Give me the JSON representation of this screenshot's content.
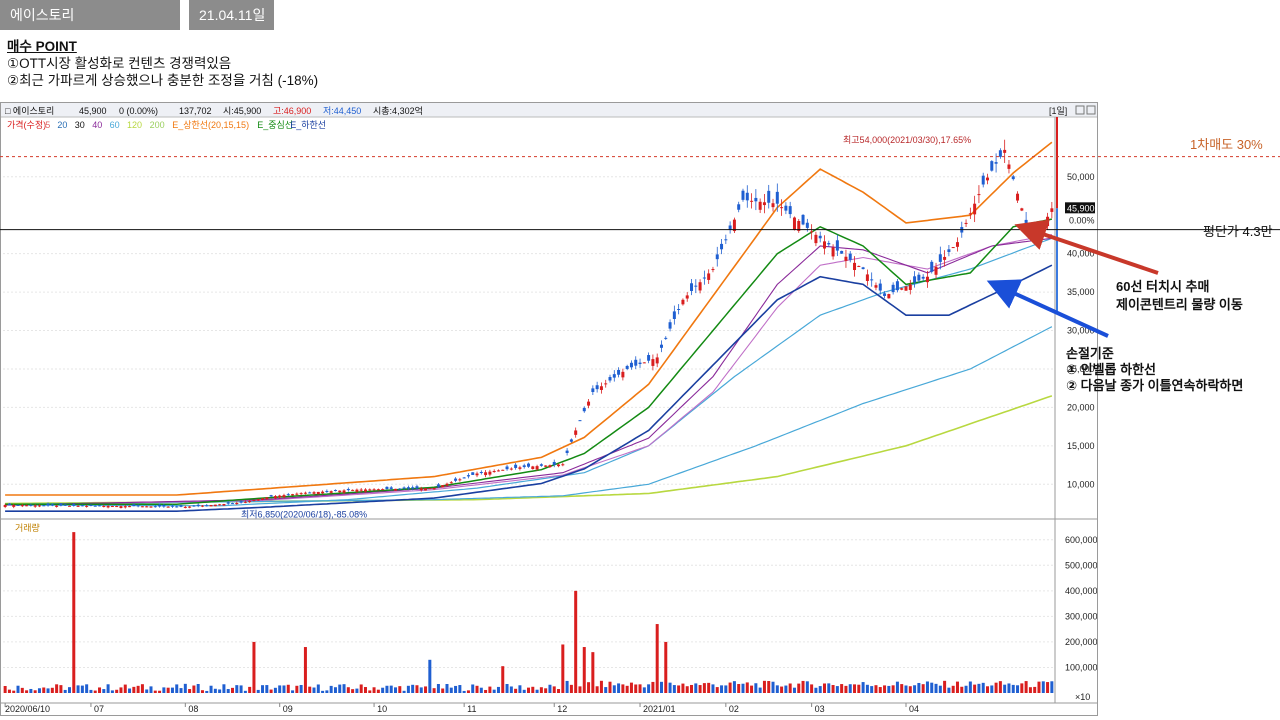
{
  "header": {
    "stock_name": "에이스토리",
    "date": "21.04.11일"
  },
  "points": {
    "title": "매수 POINT",
    "items": [
      "①OTT시장 활성화로 컨텐츠 경쟁력있음",
      "②최근 가파르게 상승했으나 충분한 조정을 거침 (-18%)"
    ]
  },
  "annotations": {
    "sell_target": "1차매도 30%",
    "avg_price": "평단가 4.3만",
    "buy_more_1": "60선 터치시 추매",
    "buy_more_2": "제이콘텐트리 물량 이동",
    "stop_title": "손절기준",
    "stop_1": "① 인벨롭 하한선",
    "stop_2": "② 다음날 종가 이틀연속하락하면"
  },
  "colors": {
    "up": "#d91e1e",
    "down": "#1f5fd1",
    "ma5": "#e06666",
    "ma20": "#2a6fb5",
    "ma60": "#48a8d8",
    "ma120": "#b8d840",
    "env_upper": "#f07810",
    "env_mid": "#138a13",
    "env_lower": "#1a3fa0",
    "ma30": "#8a2a9a",
    "ma40": "#c070c8",
    "annotation_red": "#c8382a",
    "annotation_blue": "#1a4fd8",
    "sell_text": "#c8642a"
  },
  "chart_data": {
    "type": "candlestick",
    "info_bar": {
      "name": "에이스토리",
      "price": "45,900",
      "change": "0",
      "change_pct": "(0.00%)",
      "volume": "137,702",
      "open": "시:45,900",
      "high": "고:46,900",
      "low": "저:44,450",
      "market_cap": "시총:4,302억",
      "period": "1일"
    },
    "legend": [
      "가격(수정)",
      "5",
      "20",
      "30",
      "40",
      "60",
      "120",
      "200",
      "E_상한선(20,15,15)",
      "E_중심선",
      "E_하한선"
    ],
    "volume_label": "거래량",
    "volume_unit": "×10",
    "price_axis": {
      "ticks": [
        10000,
        15000,
        20000,
        25000,
        30000,
        35000,
        40000,
        50000
      ],
      "labels": [
        "10,000",
        "15,000",
        "20,000",
        "25,000",
        "30,000",
        "35,000",
        "40,000",
        "50,000"
      ],
      "ylim": [
        6000,
        57000
      ]
    },
    "volume_axis": {
      "ticks": [
        100000,
        200000,
        300000,
        400000,
        500000,
        600000
      ],
      "labels": [
        "100,000",
        "200,000",
        "300,000",
        "400,000",
        "500,000",
        "600,000"
      ],
      "ylim": [
        0,
        650000
      ]
    },
    "x_axis_labels": [
      "2020/06/10",
      "07",
      "08",
      "09",
      "10",
      "11",
      "12",
      "2021/01",
      "02",
      "03",
      "04"
    ],
    "current_price": {
      "value": 45900,
      "label": "45,900",
      "pct_label": "0.00%"
    },
    "high_annotation": {
      "value": 54000,
      "label": "최고54,000(2021/03/30),17.65%"
    },
    "low_annotation": {
      "value": 6850,
      "label": "최저6,850(2020/06/18),-85.08%"
    },
    "sell_target_price": 52500,
    "avg_price_level": 43000,
    "price_anchors": [
      [
        0,
        7300
      ],
      [
        15,
        7200
      ],
      [
        30,
        7150
      ],
      [
        42,
        7050
      ],
      [
        55,
        7600
      ],
      [
        62,
        8400
      ],
      [
        70,
        8900
      ],
      [
        82,
        9300
      ],
      [
        100,
        9500
      ],
      [
        110,
        11400
      ],
      [
        120,
        12200
      ],
      [
        130,
        12600
      ],
      [
        133,
        17000
      ],
      [
        137,
        22000
      ],
      [
        145,
        25000
      ],
      [
        152,
        26500
      ],
      [
        158,
        34000
      ],
      [
        165,
        38000
      ],
      [
        172,
        47000
      ],
      [
        180,
        46500
      ],
      [
        190,
        42000
      ],
      [
        200,
        38000
      ],
      [
        205,
        34500
      ],
      [
        215,
        37000
      ],
      [
        222,
        41500
      ],
      [
        228,
        49000
      ],
      [
        233,
        53500
      ],
      [
        238,
        44000
      ],
      [
        240,
        41500
      ],
      [
        244,
        45900
      ]
    ],
    "volume_spikes": [
      [
        16,
        630000
      ],
      [
        58,
        200000
      ],
      [
        70,
        180000
      ],
      [
        99,
        130000
      ],
      [
        116,
        105000
      ],
      [
        130,
        190000
      ],
      [
        133,
        400000
      ],
      [
        135,
        180000
      ],
      [
        137,
        160000
      ],
      [
        152,
        270000
      ],
      [
        154,
        200000
      ]
    ],
    "env_mid_anchors": [
      [
        0,
        7400
      ],
      [
        40,
        7400
      ],
      [
        60,
        8200
      ],
      [
        100,
        9600
      ],
      [
        125,
        11900
      ],
      [
        135,
        14000
      ],
      [
        150,
        20000
      ],
      [
        165,
        30000
      ],
      [
        180,
        40000
      ],
      [
        190,
        43500
      ],
      [
        200,
        41000
      ],
      [
        210,
        36000
      ],
      [
        225,
        37500
      ],
      [
        235,
        43500
      ],
      [
        244,
        44500
      ]
    ],
    "env_lower_anchors": [
      [
        0,
        6500
      ],
      [
        40,
        6500
      ],
      [
        60,
        7000
      ],
      [
        100,
        8200
      ],
      [
        125,
        10100
      ],
      [
        135,
        12000
      ],
      [
        150,
        17000
      ],
      [
        165,
        25500
      ],
      [
        180,
        34000
      ],
      [
        190,
        37000
      ],
      [
        200,
        36000
      ],
      [
        210,
        32000
      ],
      [
        220,
        32000
      ],
      [
        235,
        36000
      ],
      [
        244,
        38500
      ]
    ],
    "env_upper_anchors": [
      [
        0,
        8600
      ],
      [
        40,
        8600
      ],
      [
        60,
        9400
      ],
      [
        100,
        11000
      ],
      [
        125,
        13500
      ],
      [
        135,
        16100
      ],
      [
        150,
        23000
      ],
      [
        165,
        34500
      ],
      [
        180,
        46000
      ],
      [
        190,
        51000
      ],
      [
        200,
        48000
      ],
      [
        210,
        44000
      ],
      [
        225,
        45000
      ],
      [
        235,
        50500
      ],
      [
        244,
        54500
      ]
    ],
    "ma60_anchors": [
      [
        0,
        7300
      ],
      [
        50,
        7200
      ],
      [
        80,
        8000
      ],
      [
        110,
        9500
      ],
      [
        135,
        11500
      ],
      [
        150,
        15000
      ],
      [
        170,
        24000
      ],
      [
        190,
        32000
      ],
      [
        205,
        35000
      ],
      [
        225,
        38000
      ],
      [
        244,
        42000
      ]
    ],
    "ma120_anchors": [
      [
        0,
        7400
      ],
      [
        100,
        8000
      ],
      [
        130,
        8500
      ],
      [
        150,
        10000
      ],
      [
        175,
        15000
      ],
      [
        200,
        20500
      ],
      [
        225,
        25000
      ],
      [
        244,
        30500
      ]
    ],
    "ma200_anchors": [
      [
        0,
        7500
      ],
      [
        110,
        8000
      ],
      [
        150,
        8800
      ],
      [
        180,
        11000
      ],
      [
        210,
        15000
      ],
      [
        244,
        21500
      ]
    ],
    "ma30_anchors": [
      [
        0,
        7300
      ],
      [
        60,
        8000
      ],
      [
        100,
        9500
      ],
      [
        130,
        11500
      ],
      [
        150,
        16000
      ],
      [
        165,
        24000
      ],
      [
        180,
        36000
      ],
      [
        190,
        41000
      ],
      [
        200,
        40500
      ],
      [
        215,
        37500
      ],
      [
        230,
        41000
      ],
      [
        244,
        42000
      ]
    ],
    "ma40_anchors": [
      [
        0,
        7300
      ],
      [
        60,
        7900
      ],
      [
        100,
        9300
      ],
      [
        130,
        11200
      ],
      [
        150,
        15000
      ],
      [
        165,
        22000
      ],
      [
        180,
        33000
      ],
      [
        190,
        38500
      ],
      [
        200,
        39500
      ],
      [
        215,
        38000
      ],
      [
        230,
        41000
      ],
      [
        244,
        42500
      ]
    ]
  }
}
